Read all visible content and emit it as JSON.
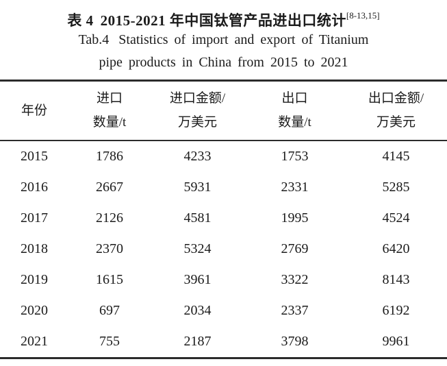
{
  "page": {
    "background_color": "#ffffff",
    "text_color": "#1b1b1b",
    "rule_color": "#2b2b2b"
  },
  "caption": {
    "zh_label": "表 4",
    "zh_text": "2015-2021 年中国钛管产品进出口统计",
    "citation": "[8-13,15]",
    "en_label": "Tab.4",
    "en_line1": "Statistics of import and export of Titanium",
    "en_line2": "pipe products in China from 2015 to 2021"
  },
  "table": {
    "columns": [
      {
        "line1": "年份",
        "line2": ""
      },
      {
        "line1": "进口",
        "line2": "数量/t"
      },
      {
        "line1": "进口金额/",
        "line2": "万美元"
      },
      {
        "line1": "出口",
        "line2": "数量/t"
      },
      {
        "line1": "出口金额/",
        "line2": "万美元"
      }
    ],
    "rows": [
      [
        "2015",
        "1786",
        "4233",
        "1753",
        "4145"
      ],
      [
        "2016",
        "2667",
        "5931",
        "2331",
        "5285"
      ],
      [
        "2017",
        "2126",
        "4581",
        "1995",
        "4524"
      ],
      [
        "2018",
        "2370",
        "5324",
        "2769",
        "6420"
      ],
      [
        "2019",
        "1615",
        "3961",
        "3322",
        "8143"
      ],
      [
        "2020",
        "697",
        "2034",
        "2337",
        "6192"
      ],
      [
        "2021",
        "755",
        "2187",
        "3798",
        "9961"
      ]
    ]
  },
  "chart_data": {
    "type": "table",
    "title": "表 4 2015-2021 年中国钛管产品进出口统计 / Tab.4 Statistics of import and export of Titanium pipe products in China from 2015 to 2021",
    "categories": [
      "2015",
      "2016",
      "2017",
      "2018",
      "2019",
      "2020",
      "2021"
    ],
    "series": [
      {
        "name": "进口数量/t",
        "values": [
          1786,
          2667,
          2126,
          2370,
          1615,
          697,
          755
        ]
      },
      {
        "name": "进口金额/万美元",
        "values": [
          4233,
          5931,
          4581,
          5324,
          3961,
          2034,
          2187
        ]
      },
      {
        "name": "出口数量/t",
        "values": [
          1753,
          2331,
          1995,
          2769,
          3322,
          2337,
          3798
        ]
      },
      {
        "name": "出口金额/万美元",
        "values": [
          4145,
          5285,
          4524,
          6420,
          8143,
          6192,
          9961
        ]
      }
    ]
  }
}
